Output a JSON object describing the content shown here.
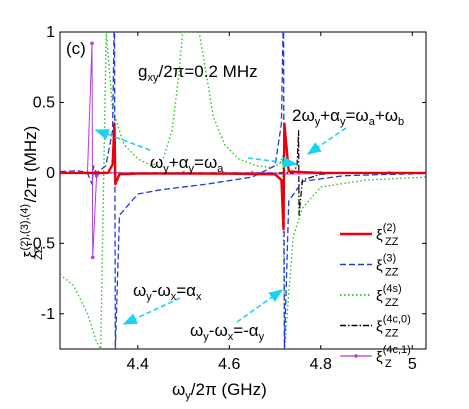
{
  "chart_data": {
    "type": "line",
    "panel_label": "(c)",
    "xlabel": "ω_y/2π (GHz)",
    "ylabel": "ξ_ZZ^{(2),(3),(4)}/2π (MHz)",
    "xlim": [
      4.23,
      5.03
    ],
    "ylim": [
      -1.25,
      1.0
    ],
    "x_ticks": [
      "4.4",
      "4.6",
      "4.8",
      "5"
    ],
    "y_ticks": [
      "1",
      "0.5",
      "0",
      "-0.5",
      "-1"
    ],
    "grid": false,
    "legend_position": "bottom-right",
    "annotations": {
      "coupling": "g_xy/2π=0.2 MHz",
      "res1": "ω_y+α_y=ω_a",
      "res2": "2ω_y+α_y=ω_a+ω_b",
      "res3": "ω_y-ω_x=α_x",
      "res4": "ω_y-ω_x=-α_y"
    },
    "series": [
      {
        "name": "ξ_ZZ^(2)",
        "color": "#e8000b",
        "style": "solid",
        "points": [
          [
            4.23,
            0.0
          ],
          [
            4.3,
            0.0
          ],
          [
            4.335,
            0.0
          ],
          [
            4.345,
            0.06
          ],
          [
            4.349,
            0.35
          ],
          [
            4.351,
            -0.08
          ],
          [
            4.36,
            -0.01
          ],
          [
            4.4,
            -0.005
          ],
          [
            4.5,
            -0.005
          ],
          [
            4.6,
            -0.006
          ],
          [
            4.7,
            -0.01
          ],
          [
            4.714,
            -0.05
          ],
          [
            4.7185,
            -0.4
          ],
          [
            4.7205,
            0.35
          ],
          [
            4.73,
            0.01
          ],
          [
            4.8,
            0.0
          ],
          [
            4.9,
            0.0
          ],
          [
            5.03,
            0.0
          ]
        ]
      },
      {
        "name": "ξ_ZZ^(3)",
        "color": "#1f3bd6",
        "style": "dashed",
        "points": [
          [
            4.23,
            0.01
          ],
          [
            4.27,
            0.015
          ],
          [
            4.29,
            0.0
          ],
          [
            4.3,
            -0.08
          ],
          [
            4.303,
            0.05
          ],
          [
            4.31,
            0.0
          ],
          [
            4.33,
            0.05
          ],
          [
            4.345,
            0.3
          ],
          [
            4.349,
            1.2
          ],
          [
            4.351,
            -1.25
          ],
          [
            4.36,
            -0.3
          ],
          [
            4.4,
            -0.15
          ],
          [
            4.45,
            -0.12
          ],
          [
            4.55,
            -0.08
          ],
          [
            4.65,
            -0.03
          ],
          [
            4.7,
            0.05
          ],
          [
            4.714,
            0.35
          ],
          [
            4.7185,
            1.2
          ],
          [
            4.7205,
            -1.25
          ],
          [
            4.73,
            -0.2
          ],
          [
            4.76,
            -0.06
          ],
          [
            4.85,
            -0.02
          ],
          [
            4.95,
            -0.01
          ],
          [
            5.03,
            -0.005
          ]
        ]
      },
      {
        "name": "ξ_ZZ^(4s)",
        "color": "#22c422",
        "style": "dotted",
        "points": [
          [
            4.23,
            -0.72
          ],
          [
            4.26,
            -0.8
          ],
          [
            4.29,
            -1.0
          ],
          [
            4.31,
            -1.2
          ],
          [
            4.319,
            -1.25
          ],
          [
            4.331,
            1.0
          ],
          [
            4.345,
            0.45
          ],
          [
            4.37,
            0.2
          ],
          [
            4.4,
            0.1
          ],
          [
            4.43,
            0.05
          ],
          [
            4.455,
            0.1
          ],
          [
            4.475,
            0.3
          ],
          [
            4.49,
            0.7
          ],
          [
            4.498,
            1.0
          ],
          [
            4.534,
            1.0
          ],
          [
            4.55,
            0.7
          ],
          [
            4.565,
            0.4
          ],
          [
            4.59,
            0.2
          ],
          [
            4.62,
            0.1
          ],
          [
            4.66,
            0.05
          ],
          [
            4.69,
            0.04
          ],
          [
            4.71,
            0.06
          ],
          [
            4.717,
            0.12
          ],
          [
            4.721,
            -1.25
          ],
          [
            4.729,
            -0.9
          ],
          [
            4.74,
            -0.45
          ],
          [
            4.76,
            -0.25
          ],
          [
            4.8,
            -0.1
          ],
          [
            4.9,
            -0.05
          ],
          [
            5.03,
            -0.03
          ]
        ]
      },
      {
        "name": "ξ_ZZ^(4c,0)",
        "color": "#000000",
        "style": "dashdot",
        "points": [
          [
            4.23,
            0.0
          ],
          [
            4.7,
            0.0
          ],
          [
            4.74,
            0.0
          ],
          [
            4.748,
            0.05
          ],
          [
            4.7515,
            0.3
          ],
          [
            4.7525,
            -0.3
          ],
          [
            4.76,
            -0.05
          ],
          [
            4.8,
            -0.01
          ],
          [
            4.85,
            0.0
          ],
          [
            5.03,
            0.0
          ]
        ]
      },
      {
        "name": "ξ_Z^(4c,1)",
        "color": "#b03fd6",
        "style": "solid-marker",
        "points": [
          [
            4.23,
            0.0
          ],
          [
            4.29,
            0.0
          ],
          [
            4.3,
            0.92
          ],
          [
            4.3015,
            -0.6
          ],
          [
            4.31,
            -0.02
          ],
          [
            4.32,
            0.0
          ],
          [
            4.5,
            0.0
          ],
          [
            4.7,
            0.0
          ],
          [
            4.71,
            -0.01
          ],
          [
            4.9,
            0.0
          ],
          [
            5.03,
            0.0
          ]
        ],
        "markers": [
          [
            4.29,
            0.0
          ],
          [
            4.3,
            0.92
          ],
          [
            4.3015,
            -0.6
          ],
          [
            4.305,
            0.0
          ],
          [
            4.31,
            -0.02
          ],
          [
            4.35,
            0.0
          ],
          [
            4.5,
            0.0
          ],
          [
            4.65,
            0.0
          ],
          [
            4.8,
            0.0
          ],
          [
            4.95,
            0.0
          ]
        ]
      }
    ]
  }
}
